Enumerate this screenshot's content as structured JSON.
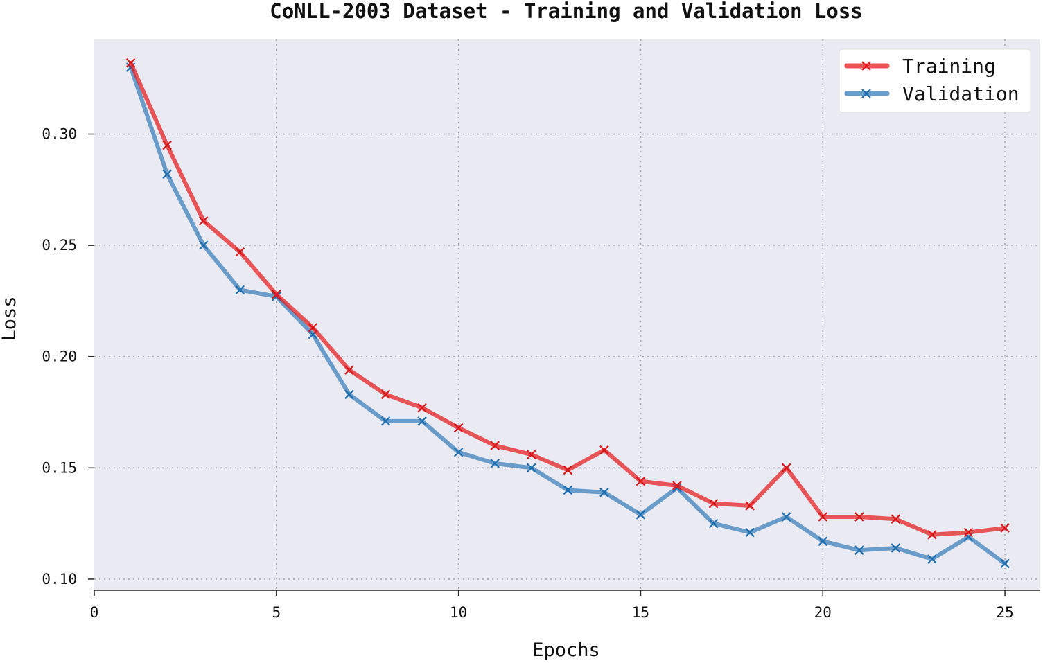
{
  "chart_data": {
    "type": "line",
    "title": "CoNLL-2003 Dataset - Training and Validation Loss",
    "xlabel": "Epochs",
    "ylabel": "Loss",
    "xlim": [
      0,
      25.95
    ],
    "ylim": [
      0.095,
      0.3425
    ],
    "xticks": [
      0,
      5,
      10,
      15,
      20,
      25
    ],
    "yticks": [
      0.1,
      0.15,
      0.2,
      0.25,
      0.3
    ],
    "ytick_labels": [
      "0.10",
      "0.15",
      "0.20",
      "0.25",
      "0.30"
    ],
    "xtick_labels": [
      "0",
      "5",
      "10",
      "15",
      "20",
      "25"
    ],
    "grid": true,
    "legend_position": "top-right",
    "x": [
      1,
      2,
      3,
      4,
      5,
      6,
      7,
      8,
      9,
      10,
      11,
      12,
      13,
      14,
      15,
      16,
      17,
      18,
      19,
      20,
      21,
      22,
      23,
      24,
      25
    ],
    "series": [
      {
        "name": "Training",
        "color": "#e41a1c",
        "marker": "x",
        "values": [
          0.332,
          0.295,
          0.261,
          0.247,
          0.228,
          0.213,
          0.194,
          0.183,
          0.177,
          0.168,
          0.16,
          0.156,
          0.149,
          0.158,
          0.144,
          0.142,
          0.134,
          0.133,
          0.15,
          0.128,
          0.128,
          0.127,
          0.12,
          0.121,
          0.123
        ]
      },
      {
        "name": "Validation",
        "color": "#377eb8",
        "marker": "x",
        "values": [
          0.33,
          0.282,
          0.25,
          0.23,
          0.227,
          0.21,
          0.183,
          0.171,
          0.171,
          0.157,
          0.152,
          0.15,
          0.14,
          0.139,
          0.129,
          0.141,
          0.125,
          0.121,
          0.128,
          0.117,
          0.113,
          0.114,
          0.109,
          0.119,
          0.107
        ]
      }
    ]
  }
}
